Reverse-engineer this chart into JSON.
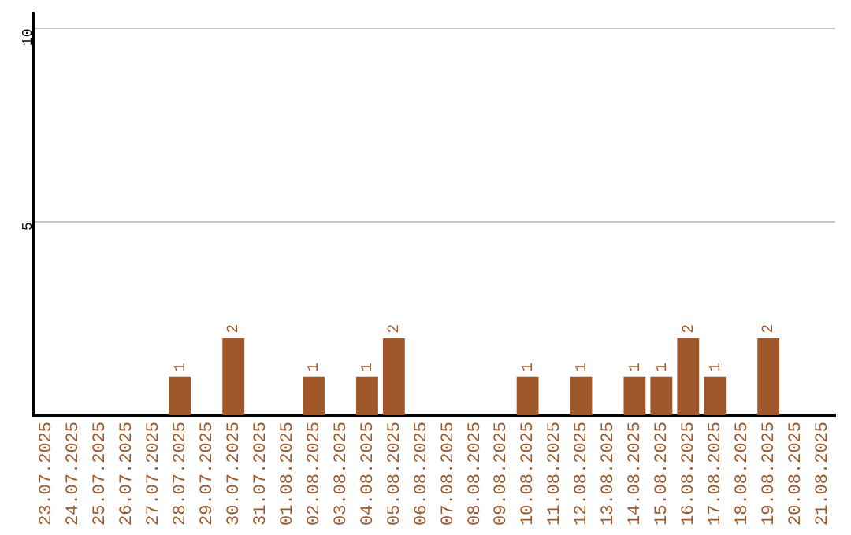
{
  "chart_data": {
    "type": "bar",
    "categories": [
      "23.07.2025",
      "24.07.2025",
      "25.07.2025",
      "26.07.2025",
      "27.07.2025",
      "28.07.2025",
      "29.07.2025",
      "30.07.2025",
      "31.07.2025",
      "01.08.2025",
      "02.08.2025",
      "03.08.2025",
      "04.08.2025",
      "05.08.2025",
      "06.08.2025",
      "07.08.2025",
      "08.08.2025",
      "09.08.2025",
      "10.08.2025",
      "11.08.2025",
      "12.08.2025",
      "13.08.2025",
      "14.08.2025",
      "15.08.2025",
      "16.08.2025",
      "17.08.2025",
      "18.08.2025",
      "19.08.2025",
      "20.08.2025",
      "21.08.2025"
    ],
    "values": [
      0,
      0,
      0,
      0,
      0,
      1,
      0,
      2,
      0,
      0,
      1,
      0,
      1,
      2,
      0,
      0,
      0,
      0,
      1,
      0,
      1,
      0,
      1,
      1,
      2,
      1,
      0,
      2,
      0,
      0
    ],
    "value_labels": [
      null,
      null,
      null,
      null,
      null,
      "1",
      null,
      "2",
      null,
      null,
      "1",
      null,
      "1",
      "2",
      null,
      null,
      null,
      null,
      "1",
      null,
      "1",
      null,
      "1",
      "1",
      "2",
      "1",
      null,
      "2",
      null,
      null
    ],
    "color": "#a0582a",
    "ylim": [
      0,
      10.4
    ],
    "yticks": [
      5,
      10
    ],
    "grid": "y",
    "legend": false
  }
}
